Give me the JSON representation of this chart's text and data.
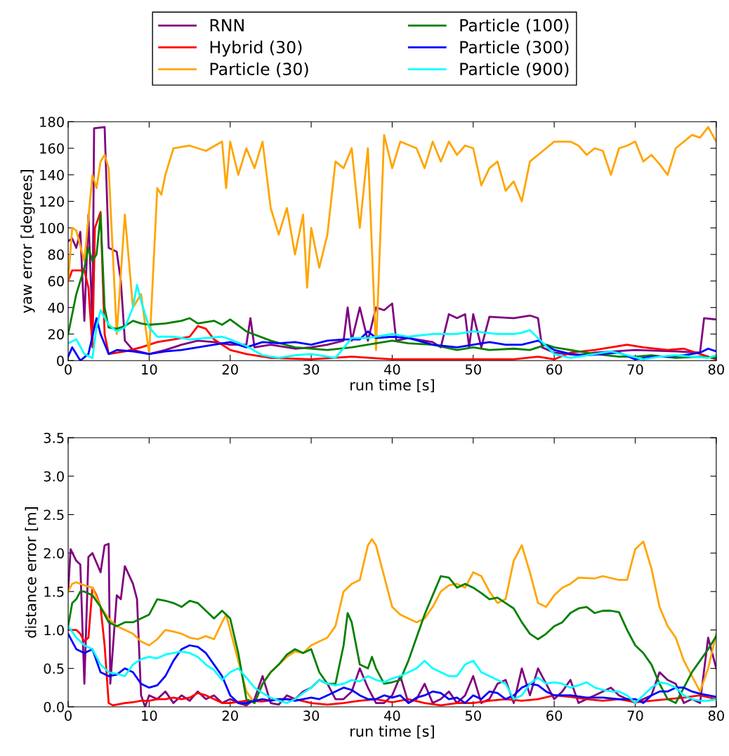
{
  "chart_data": [
    {
      "type": "line",
      "xlabel": "run time [s]",
      "ylabel": "yaw error [degrees]",
      "xlim": [
        0,
        80
      ],
      "ylim": [
        0,
        180
      ],
      "xticks": [
        0,
        10,
        20,
        30,
        40,
        50,
        60,
        70,
        80
      ],
      "yticks": [
        0,
        20,
        40,
        60,
        80,
        100,
        120,
        140,
        160,
        180
      ],
      "legend": "top",
      "grid": false,
      "series": [
        {
          "name": "RNN",
          "color": "#800080",
          "x": [
            0,
            0.5,
            1,
            1.5,
            2,
            2.5,
            3,
            3.2,
            4.5,
            5,
            6,
            6.5,
            7,
            8,
            10,
            12,
            14,
            16,
            18,
            20,
            22,
            22.5,
            23,
            25,
            28,
            30,
            32,
            34,
            34.5,
            35,
            36,
            37,
            38,
            39,
            40,
            40.5,
            42,
            45,
            46,
            47,
            48,
            49,
            49.5,
            50,
            51,
            52,
            55,
            57,
            58,
            58.5,
            60,
            63,
            65,
            70,
            75,
            78,
            78.5,
            80
          ],
          "values": [
            90,
            92,
            85,
            97,
            30,
            110,
            25,
            175,
            176,
            85,
            82,
            60,
            15,
            8,
            5,
            8,
            12,
            15,
            14,
            12,
            12,
            32,
            10,
            12,
            9,
            10,
            12,
            15,
            40,
            15,
            40,
            15,
            40,
            38,
            43,
            15,
            17,
            14,
            10,
            35,
            32,
            35,
            10,
            35,
            10,
            33,
            32,
            34,
            32,
            10,
            6,
            4,
            6,
            8,
            7,
            6,
            32,
            31
          ]
        },
        {
          "name": "Hybrid (30)",
          "color": "#ff0000",
          "x": [
            0,
            0.5,
            2,
            2.5,
            3,
            3.3,
            4,
            4.5,
            5,
            7,
            9,
            11,
            13,
            15,
            16,
            17,
            18,
            20,
            22,
            25,
            30,
            35,
            40,
            45,
            50,
            55,
            58,
            60,
            62,
            65,
            67,
            69,
            71,
            74,
            76,
            78,
            80
          ],
          "values": [
            60,
            68,
            68,
            55,
            10,
            100,
            112,
            20,
            5,
            7,
            10,
            14,
            16,
            18,
            26,
            24,
            16,
            8,
            5,
            2,
            1,
            3,
            1,
            1,
            1,
            1,
            3,
            1,
            6,
            8,
            10,
            12,
            10,
            8,
            9,
            5,
            1
          ]
        },
        {
          "name": "Particle (30)",
          "color": "#ffa500",
          "x": [
            0,
            0.5,
            1,
            2,
            3,
            3.5,
            4,
            4.5,
            5,
            6,
            7,
            8,
            9,
            10,
            11,
            11.5,
            12,
            13,
            15,
            17,
            19,
            19.5,
            20,
            21,
            22,
            23,
            24,
            25,
            26,
            27,
            28,
            29,
            29.5,
            30,
            31,
            32,
            33,
            34,
            35,
            36,
            37,
            38,
            39,
            40,
            41,
            43,
            44,
            45,
            46,
            47,
            48,
            49,
            50,
            51,
            52,
            53,
            54,
            55,
            56,
            57,
            58,
            59,
            60,
            62,
            63,
            64,
            65,
            66,
            67,
            68,
            69,
            70,
            71,
            72,
            73,
            74,
            75,
            76,
            77,
            78,
            79,
            80
          ],
          "values": [
            60,
            100,
            98,
            75,
            140,
            130,
            150,
            155,
            145,
            20,
            110,
            40,
            50,
            5,
            130,
            125,
            140,
            160,
            162,
            158,
            165,
            130,
            165,
            140,
            160,
            145,
            165,
            115,
            95,
            115,
            80,
            110,
            55,
            100,
            70,
            95,
            150,
            145,
            160,
            100,
            160,
            8,
            170,
            145,
            165,
            160,
            145,
            165,
            150,
            165,
            155,
            162,
            160,
            132,
            145,
            150,
            128,
            135,
            120,
            150,
            155,
            160,
            165,
            165,
            162,
            155,
            160,
            158,
            140,
            160,
            162,
            165,
            150,
            155,
            148,
            140,
            160,
            165,
            170,
            168,
            176,
            165
          ]
        },
        {
          "name": "Particle (100)",
          "color": "#008000",
          "x": [
            0,
            1,
            2,
            2.5,
            3,
            3.5,
            4,
            4.5,
            5,
            6,
            7,
            8,
            9,
            10,
            12,
            14,
            15,
            16,
            18,
            19,
            20,
            22,
            25,
            28,
            32,
            35,
            38,
            40,
            42,
            45,
            48,
            50,
            52,
            55,
            57,
            59,
            60,
            62,
            65,
            68,
            70,
            72,
            75,
            78,
            80
          ],
          "values": [
            20,
            50,
            70,
            85,
            75,
            80,
            110,
            40,
            25,
            24,
            26,
            30,
            28,
            27,
            28,
            30,
            32,
            28,
            30,
            27,
            31,
            22,
            15,
            10,
            8,
            10,
            13,
            15,
            13,
            12,
            8,
            10,
            8,
            9,
            8,
            12,
            10,
            8,
            5,
            3,
            3,
            4,
            2,
            3,
            2
          ]
        },
        {
          "name": "Particle (300)",
          "color": "#0000ff",
          "x": [
            0,
            0.5,
            1,
            1.5,
            2.5,
            3.5,
            4,
            5,
            6,
            8,
            10,
            12,
            14,
            16,
            18,
            20,
            22,
            24,
            26,
            28,
            30,
            32,
            34,
            36,
            37,
            38,
            40,
            42,
            45,
            48,
            50,
            52,
            54,
            56,
            58,
            60,
            62,
            64,
            66,
            68,
            70,
            72,
            74,
            76,
            78,
            79,
            80
          ],
          "values": [
            3,
            10,
            5,
            0,
            5,
            32,
            20,
            5,
            8,
            7,
            5,
            7,
            8,
            10,
            12,
            14,
            10,
            14,
            13,
            14,
            12,
            15,
            16,
            16,
            22,
            17,
            18,
            17,
            12,
            10,
            12,
            14,
            12,
            12,
            15,
            8,
            5,
            4,
            5,
            6,
            1,
            3,
            3,
            4,
            6,
            9,
            7
          ]
        },
        {
          "name": "Particle (900)",
          "color": "#00ffff",
          "x": [
            0,
            1,
            2,
            3,
            3.5,
            4,
            5,
            6,
            7,
            8,
            8.5,
            9,
            10,
            11,
            13,
            15,
            17,
            19,
            20,
            22,
            24,
            26,
            28,
            30,
            32,
            33,
            35,
            37,
            40,
            42,
            45,
            48,
            50,
            53,
            55,
            56,
            57,
            58,
            60,
            62,
            65,
            67,
            69,
            71,
            73,
            75,
            77,
            79,
            80
          ],
          "values": [
            13,
            16,
            5,
            2,
            25,
            38,
            27,
            22,
            25,
            40,
            57,
            45,
            25,
            18,
            18,
            16,
            17,
            18,
            16,
            11,
            4,
            2,
            4,
            5,
            3,
            2,
            17,
            17,
            20,
            18,
            20,
            20,
            22,
            20,
            20,
            21,
            23,
            17,
            5,
            2,
            5,
            7,
            4,
            1,
            3,
            4,
            3,
            2,
            4
          ]
        }
      ]
    },
    {
      "type": "line",
      "xlabel": "run time [s]",
      "ylabel": "distance error [m]",
      "xlim": [
        0,
        80
      ],
      "ylim": [
        0,
        3.5
      ],
      "xticks": [
        0,
        10,
        20,
        30,
        40,
        50,
        60,
        70,
        80
      ],
      "yticks": [
        {
          "value": 0,
          "label": "0.0"
        },
        {
          "value": 0.5,
          "label": "0.5"
        },
        {
          "value": 1,
          "label": "1.0"
        },
        {
          "value": 1.5,
          "label": "1.5"
        },
        {
          "value": 2,
          "label": "2.0"
        },
        {
          "value": 2.5,
          "label": "2.5"
        },
        {
          "value": 3,
          "label": "3.0"
        },
        {
          "value": 3.5,
          "label": "3.5"
        }
      ],
      "grid": false,
      "series": [
        {
          "color": "#800080",
          "x": [
            0,
            0.3,
            1,
            1.5,
            2,
            2.5,
            3,
            4,
            4.5,
            5,
            5.2,
            6,
            6.5,
            7,
            8,
            8.5,
            9,
            9.5,
            10,
            11,
            12,
            13,
            14,
            15,
            16,
            17,
            18,
            19,
            20,
            21,
            22,
            23,
            24,
            25,
            26,
            27,
            28,
            29,
            30,
            31,
            32,
            33,
            34,
            35,
            36,
            37,
            38,
            39,
            40,
            41,
            42,
            43,
            44,
            45,
            46,
            47,
            48,
            49,
            50,
            51,
            52,
            53,
            54,
            55,
            56,
            57,
            58,
            59,
            60,
            61,
            62,
            63,
            64,
            65,
            66,
            67,
            68,
            69,
            70,
            71,
            72,
            73,
            74,
            75,
            76,
            77,
            78,
            79,
            80
          ],
          "values": [
            1.5,
            2.05,
            1.9,
            1.85,
            0.3,
            1.95,
            2.0,
            1.75,
            2.1,
            2.12,
            0.3,
            1.45,
            1.4,
            1.83,
            1.6,
            1.4,
            0.15,
            0.0,
            0.15,
            0.1,
            0.2,
            0.05,
            0.15,
            0.08,
            0.2,
            0.1,
            0.15,
            0.05,
            0.1,
            0.05,
            0.02,
            0.1,
            0.4,
            0.05,
            0.03,
            0.15,
            0.1,
            0.2,
            0.25,
            0.35,
            0.3,
            0.1,
            0.1,
            0.2,
            0.5,
            0.25,
            0.05,
            0.05,
            0.15,
            0.4,
            0.05,
            0.1,
            0.3,
            0.05,
            0.1,
            0.2,
            0.05,
            0.15,
            0.4,
            0.05,
            0.1,
            0.3,
            0.35,
            0.05,
            0.5,
            0.15,
            0.5,
            0.3,
            0.1,
            0.2,
            0.35,
            0.05,
            0.1,
            0.15,
            0.2,
            0.25,
            0.15,
            0.1,
            0.05,
            0.1,
            0.15,
            0.45,
            0.35,
            0.3,
            0.05,
            0.1,
            0.05,
            0.9,
            0.5
          ]
        },
        {
          "color": "#ff0000",
          "x": [
            0,
            1,
            1.5,
            2,
            2.5,
            3,
            3.5,
            4,
            4.5,
            5,
            5.5,
            6,
            7,
            8,
            9,
            10,
            11,
            12,
            13,
            14,
            15,
            16,
            17,
            18,
            19,
            20,
            22,
            24,
            26,
            28,
            30,
            32,
            34,
            36,
            38,
            40,
            42,
            44,
            46,
            48,
            50,
            52,
            54,
            56,
            58,
            60,
            62,
            64,
            66,
            68,
            70,
            72,
            74,
            76,
            78,
            80
          ],
          "values": [
            1.0,
            1.0,
            0.95,
            0.85,
            0.9,
            1.55,
            1.45,
            1.3,
            0.8,
            0.05,
            0.02,
            0.03,
            0.05,
            0.06,
            0.08,
            0.08,
            0.1,
            0.1,
            0.12,
            0.1,
            0.12,
            0.18,
            0.15,
            0.1,
            0.05,
            0.05,
            0.08,
            0.07,
            0.1,
            0.1,
            0.05,
            0.03,
            0.05,
            0.08,
            0.1,
            0.06,
            0.1,
            0.05,
            0.02,
            0.05,
            0.05,
            0.08,
            0.1,
            0.08,
            0.1,
            0.15,
            0.13,
            0.1,
            0.08,
            0.1,
            0.06,
            0.08,
            0.1,
            0.12,
            0.15,
            0.1
          ]
        },
        {
          "color": "#ffa500",
          "x": [
            0,
            0.5,
            1,
            2,
            3,
            4,
            5,
            6,
            7,
            8,
            9,
            10,
            11,
            12,
            13,
            14,
            15,
            16,
            17,
            18,
            19,
            19.5,
            20,
            21,
            22,
            23,
            24,
            25,
            26,
            27,
            28,
            29,
            30,
            31,
            32,
            33,
            34,
            35,
            36,
            37,
            37.5,
            38,
            39,
            40,
            41,
            42,
            43,
            44,
            45,
            46,
            47,
            48,
            49,
            50,
            51,
            52,
            53,
            54,
            55,
            56,
            57,
            58,
            59,
            60,
            61,
            62,
            63,
            65,
            66,
            68,
            69,
            70,
            71,
            72,
            73,
            74,
            75,
            76,
            77,
            78,
            79,
            80
          ],
          "values": [
            1.5,
            1.6,
            1.62,
            1.58,
            1.55,
            1.3,
            1.15,
            1.05,
            1.0,
            0.95,
            0.85,
            0.8,
            0.88,
            1.0,
            0.98,
            0.95,
            0.9,
            0.88,
            0.92,
            0.88,
            1.1,
            1.2,
            1.0,
            0.6,
            0.2,
            0.05,
            0.3,
            0.45,
            0.55,
            0.65,
            0.72,
            0.7,
            0.8,
            0.85,
            0.9,
            1.05,
            1.5,
            1.6,
            1.65,
            2.1,
            2.18,
            2.1,
            1.7,
            1.3,
            1.2,
            1.15,
            1.1,
            1.15,
            1.3,
            1.5,
            1.58,
            1.6,
            1.55,
            1.75,
            1.7,
            1.5,
            1.35,
            1.4,
            1.9,
            2.1,
            1.75,
            1.35,
            1.3,
            1.45,
            1.55,
            1.6,
            1.68,
            1.67,
            1.7,
            1.65,
            1.65,
            2.05,
            2.15,
            1.8,
            1.3,
            1.05,
            0.9,
            0.6,
            0.4,
            0.2,
            0.5,
            0.95
          ]
        },
        {
          "color": "#008000",
          "x": [
            0,
            0.5,
            1,
            1.5,
            2,
            3,
            4,
            5,
            6,
            7,
            8,
            9,
            10,
            11,
            12,
            13,
            14,
            15,
            16,
            17,
            18,
            19,
            20,
            21,
            22,
            23,
            24,
            25,
            26,
            27,
            28,
            29,
            30,
            31,
            32,
            33,
            34,
            34.5,
            35,
            36,
            37,
            37.5,
            38,
            39,
            40,
            41,
            42,
            43,
            44,
            45,
            46,
            47,
            48,
            49,
            50,
            51,
            52,
            53,
            54,
            55,
            56,
            57,
            58,
            59,
            60,
            61,
            62,
            63,
            64,
            65,
            66,
            67,
            68,
            69,
            70,
            71,
            72,
            73,
            74,
            75,
            76,
            77,
            78,
            79,
            80
          ],
          "values": [
            1.05,
            1.35,
            1.4,
            1.5,
            1.5,
            1.45,
            1.3,
            1.1,
            1.05,
            1.1,
            1.1,
            1.15,
            1.2,
            1.4,
            1.38,
            1.35,
            1.3,
            1.38,
            1.35,
            1.25,
            1.15,
            1.25,
            1.15,
            0.7,
            0.1,
            0.05,
            0.3,
            0.45,
            0.55,
            0.68,
            0.75,
            0.7,
            0.75,
            0.45,
            0.3,
            0.3,
            0.8,
            1.22,
            1.1,
            0.55,
            0.5,
            0.65,
            0.5,
            0.3,
            0.32,
            0.35,
            0.6,
            0.9,
            1.2,
            1.45,
            1.7,
            1.68,
            1.55,
            1.6,
            1.55,
            1.48,
            1.4,
            1.42,
            1.35,
            1.28,
            1.1,
            0.95,
            0.88,
            0.95,
            1.05,
            1.1,
            1.22,
            1.28,
            1.3,
            1.22,
            1.25,
            1.25,
            1.23,
            1.0,
            0.8,
            0.7,
            0.55,
            0.3,
            0.1,
            0.05,
            0.25,
            0.45,
            0.6,
            0.75,
            0.92
          ]
        },
        {
          "color": "#0000ff",
          "x": [
            0,
            1,
            2,
            3,
            4,
            5,
            6,
            7,
            8,
            9,
            10,
            11,
            12,
            13,
            14,
            15,
            16,
            17,
            18,
            19,
            20,
            21,
            22,
            23,
            24,
            25,
            26,
            27,
            28,
            29,
            30,
            31,
            32,
            33,
            34,
            35,
            36,
            37,
            38,
            39,
            40,
            41,
            42,
            43,
            44,
            45,
            46,
            47,
            48,
            49,
            50,
            51,
            52,
            53,
            54,
            55,
            56,
            57,
            58,
            59,
            60,
            62,
            64,
            66,
            68,
            70,
            71,
            72,
            73,
            74,
            75,
            76,
            77,
            78,
            79,
            80
          ],
          "values": [
            0.95,
            0.75,
            0.7,
            0.75,
            0.45,
            0.4,
            0.42,
            0.5,
            0.45,
            0.3,
            0.25,
            0.28,
            0.4,
            0.6,
            0.75,
            0.8,
            0.78,
            0.7,
            0.55,
            0.4,
            0.15,
            0.05,
            0.05,
            0.08,
            0.1,
            0.08,
            0.1,
            0.1,
            0.08,
            0.1,
            0.12,
            0.1,
            0.15,
            0.2,
            0.25,
            0.22,
            0.15,
            0.1,
            0.1,
            0.15,
            0.12,
            0.15,
            0.05,
            0.12,
            0.15,
            0.2,
            0.18,
            0.1,
            0.12,
            0.05,
            0.15,
            0.1,
            0.2,
            0.18,
            0.1,
            0.15,
            0.25,
            0.3,
            0.28,
            0.2,
            0.15,
            0.15,
            0.12,
            0.12,
            0.1,
            0.1,
            0.05,
            0.15,
            0.2,
            0.2,
            0.25,
            0.25,
            0.2,
            0.17,
            0.15,
            0.13
          ]
        },
        {
          "color": "#00ffff",
          "x": [
            0,
            1,
            2,
            3,
            4,
            5,
            6,
            7,
            8,
            9,
            10,
            11,
            12,
            13,
            14,
            15,
            16,
            17,
            18,
            19,
            20,
            21,
            22,
            23,
            24,
            25,
            26,
            27,
            28,
            29,
            30,
            31,
            32,
            33,
            34,
            35,
            36,
            37,
            38,
            39,
            40,
            41,
            42,
            43,
            44,
            45,
            46,
            47,
            48,
            49,
            50,
            51,
            52,
            53,
            54,
            55,
            56,
            57,
            58,
            59,
            60,
            61,
            62,
            63,
            64,
            65,
            66,
            67,
            68,
            69,
            70,
            71,
            72,
            73,
            74,
            75,
            76,
            77,
            78,
            79,
            80
          ],
          "values": [
            1.05,
            0.9,
            0.8,
            0.75,
            0.55,
            0.45,
            0.43,
            0.4,
            0.55,
            0.62,
            0.65,
            0.63,
            0.68,
            0.7,
            0.72,
            0.7,
            0.65,
            0.55,
            0.48,
            0.35,
            0.45,
            0.5,
            0.38,
            0.25,
            0.18,
            0.12,
            0.08,
            0.05,
            0.1,
            0.18,
            0.25,
            0.35,
            0.3,
            0.28,
            0.3,
            0.35,
            0.33,
            0.4,
            0.35,
            0.32,
            0.37,
            0.4,
            0.45,
            0.5,
            0.6,
            0.5,
            0.45,
            0.4,
            0.4,
            0.55,
            0.6,
            0.45,
            0.4,
            0.35,
            0.3,
            0.1,
            0.15,
            0.3,
            0.38,
            0.3,
            0.32,
            0.3,
            0.25,
            0.28,
            0.32,
            0.25,
            0.22,
            0.2,
            0.2,
            0.15,
            0.05,
            0.15,
            0.25,
            0.32,
            0.3,
            0.25,
            0.15,
            0.1,
            0.08,
            0.08,
            0.1
          ]
        }
      ]
    }
  ]
}
